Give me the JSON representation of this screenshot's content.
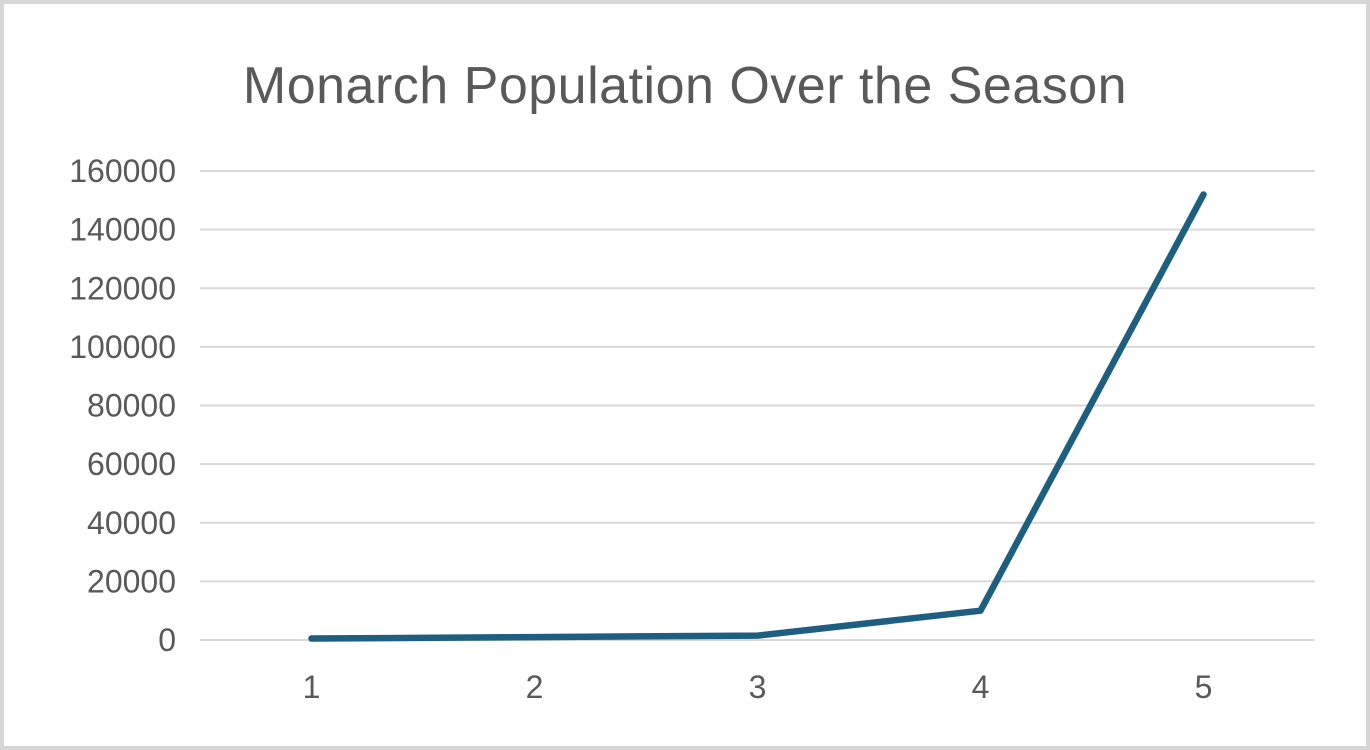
{
  "title": "Monarch Population Over the Season",
  "chart_data": {
    "type": "line",
    "title": "Monarch Population Over the Season",
    "categories": [
      "1",
      "2",
      "3",
      "4",
      "5"
    ],
    "values": [
      500,
      1000,
      1500,
      10000,
      152000
    ],
    "xlabel": "",
    "ylabel": "",
    "ylim": [
      0,
      160000
    ],
    "ytick_step": 20000,
    "ytick_labels": [
      "0",
      "20000",
      "40000",
      "60000",
      "80000",
      "100000",
      "120000",
      "140000",
      "160000"
    ],
    "grid": "horizontal",
    "legend": "none"
  },
  "colors": {
    "line": "#1E5F80",
    "grid": "#D9D9D9",
    "text": "#595959",
    "background": "#FFFFFF",
    "border": "#D6D6D6"
  }
}
